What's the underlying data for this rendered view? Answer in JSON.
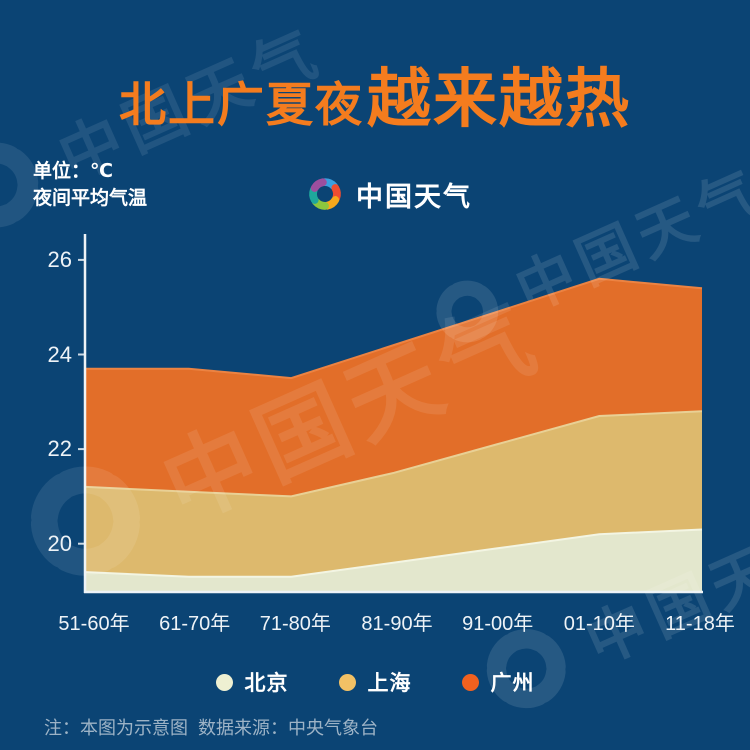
{
  "title": {
    "part1": "北上广夏夜",
    "part2": "越来越热"
  },
  "unit_block": {
    "unit_label": "单位：℃",
    "measure_label": "夜间平均气温"
  },
  "brand": {
    "name": "中国天气"
  },
  "chart_data": {
    "type": "area",
    "categories": [
      "51-60年",
      "61-70年",
      "71-80年",
      "81-90年",
      "91-00年",
      "01-10年",
      "11-18年"
    ],
    "series": [
      {
        "name": "北京",
        "color": "#e3e7cd",
        "edge_color": "#f3f5e3",
        "dot_color": "#eef0d2",
        "values": [
          19.4,
          19.3,
          19.3,
          19.6,
          19.9,
          20.2,
          20.3
        ]
      },
      {
        "name": "上海",
        "color": "#ddb96d",
        "edge_color": "#e9d095",
        "dot_color": "#f2c165",
        "values": [
          21.2,
          21.1,
          21.0,
          21.5,
          22.1,
          22.7,
          22.8
        ]
      },
      {
        "name": "广州",
        "color": "#e26e29",
        "edge_color": "#ec8342",
        "dot_color": "#f1611f",
        "values": [
          23.7,
          23.7,
          23.5,
          24.2,
          24.9,
          25.6,
          25.4
        ]
      }
    ],
    "title": "北上广夏夜越来越热",
    "ylabel": "夜间平均气温（℃）",
    "yticks": [
      20,
      22,
      24,
      26
    ],
    "ylim": [
      19,
      26.5
    ],
    "grid": false,
    "legend_position": "bottom"
  },
  "footer": {
    "note": "注：本图为示意图  数据来源：中央气象台"
  },
  "watermark": {
    "text": "中国天气"
  },
  "colors": {
    "background": "#0b4474",
    "title_accent": "#f47c1e",
    "axis": "#eef3f7",
    "note_text": "#9db3c6",
    "brand_petals": [
      "#3aa0e0",
      "#ee4d31",
      "#f7a81b",
      "#8cc63e",
      "#1fa79c",
      "#9c4f9e"
    ]
  }
}
